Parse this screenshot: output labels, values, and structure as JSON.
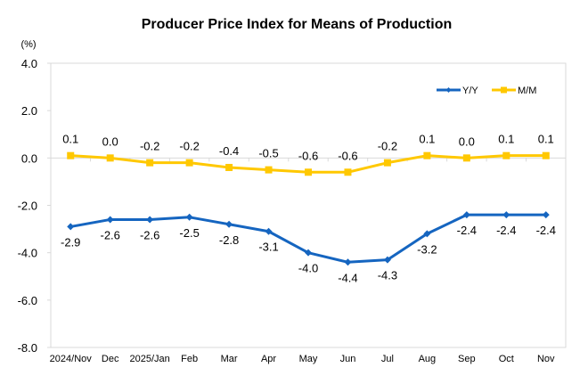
{
  "chart_data": {
    "type": "line",
    "title": "Producer Price Index for Means of Production",
    "ylabel": "(%)",
    "xlabel": "",
    "ylim": [
      -8.0,
      4.0
    ],
    "yticks": [
      4.0,
      2.0,
      0.0,
      -2.0,
      -4.0,
      -6.0,
      -8.0
    ],
    "ytick_labels": [
      "4.0",
      "2.0",
      "0.0",
      "-2.0",
      "-4.0",
      "-6.0",
      "-8.0"
    ],
    "categories": [
      "2024/Nov",
      "Dec",
      "2025/Jan",
      "Feb",
      "Mar",
      "Apr",
      "May",
      "Jun",
      "Jul",
      "Aug",
      "Sep",
      "Oct",
      "Nov"
    ],
    "grid": false,
    "legend_position": "top-right",
    "series": [
      {
        "name": "Y/Y",
        "color": "#1565C0",
        "marker": "diamond",
        "label_position": "below",
        "values": [
          -2.9,
          -2.6,
          -2.6,
          -2.5,
          -2.8,
          -3.1,
          -4.0,
          -4.4,
          -4.3,
          -3.2,
          -2.4,
          -2.4,
          -2.4
        ],
        "labels": [
          "-2.9",
          "-2.6",
          "-2.6",
          "-2.5",
          "-2.8",
          "-3.1",
          "-4.0",
          "-4.4",
          "-4.3",
          "-3.2",
          "-2.4",
          "-2.4",
          "-2.4"
        ]
      },
      {
        "name": "M/M",
        "color": "#FFC800",
        "marker": "square",
        "label_position": "above",
        "values": [
          0.1,
          0.0,
          -0.2,
          -0.2,
          -0.4,
          -0.5,
          -0.6,
          -0.6,
          -0.2,
          0.1,
          0.0,
          0.1,
          0.1
        ],
        "labels": [
          "0.1",
          "0.0",
          "-0.2",
          "-0.2",
          "-0.4",
          "-0.5",
          "-0.6",
          "-0.6",
          "-0.2",
          "0.1",
          "0.0",
          "0.1",
          "0.1"
        ]
      }
    ]
  }
}
